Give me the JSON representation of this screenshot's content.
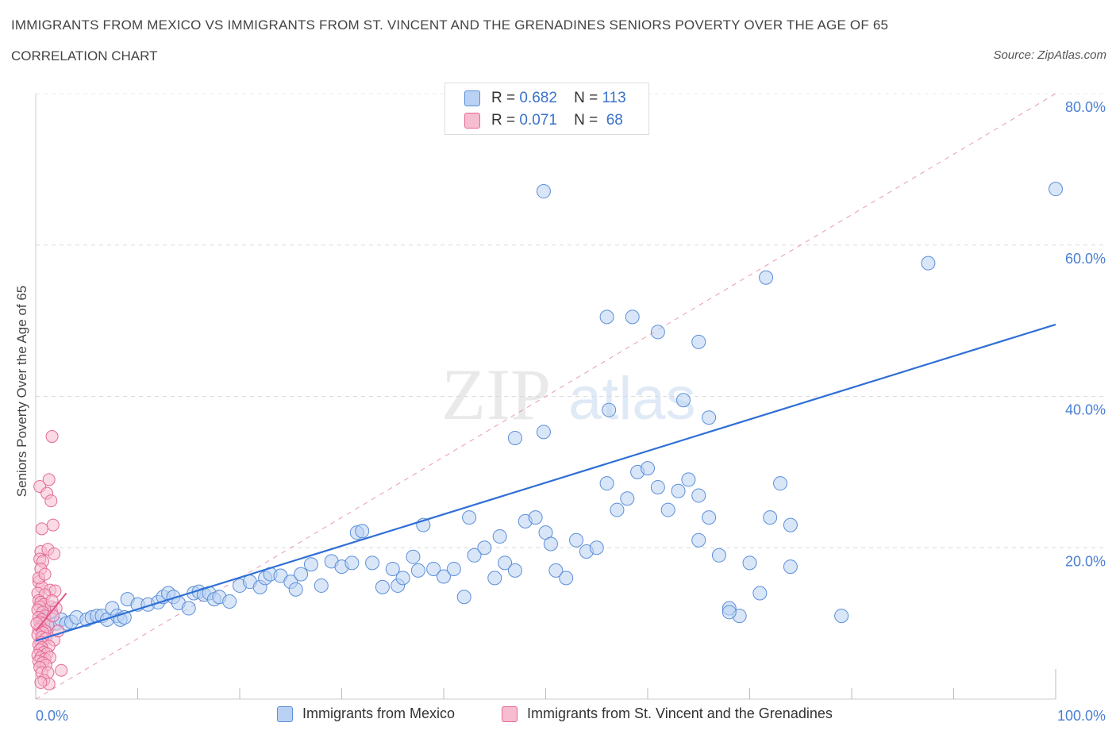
{
  "header": {
    "title": "IMMIGRANTS FROM MEXICO VS IMMIGRANTS FROM ST. VINCENT AND THE GRENADINES SENIORS POVERTY OVER THE AGE OF 65",
    "subtitle": "CORRELATION CHART",
    "source": "Source: ZipAtlas.com"
  },
  "watermark": {
    "zip": "ZIP",
    "atlas": "atlas"
  },
  "colors": {
    "blue": "#5b8fd9",
    "blue_fill": "#b9d1f2",
    "pink": "#e46a95",
    "pink_fill": "#f6bcd0",
    "ytick": "#4a7fd4"
  },
  "legend": {
    "r_label": "R =",
    "n_label": "N =",
    "series": [
      {
        "r": "0.682",
        "n": "113"
      },
      {
        "r": "0.071",
        "n": " 68"
      }
    ]
  },
  "chart_data": {
    "type": "scatter",
    "title": "IMMIGRANTS FROM MEXICO VS IMMIGRANTS FROM ST. VINCENT AND THE GRENADINES SENIORS POVERTY OVER THE AGE OF 65",
    "ylabel": "Seniors Poverty Over the Age of 65",
    "xlim": [
      0,
      100
    ],
    "ylim": [
      0,
      80
    ],
    "x_tick_labels": [
      "0.0%",
      "100.0%"
    ],
    "y_ticks": [
      20,
      40,
      60,
      80
    ],
    "y_tick_labels": [
      "20.0%",
      "40.0%",
      "60.0%",
      "80.0%"
    ],
    "grid": true,
    "legend_position": "top-center",
    "series": [
      {
        "name": "Immigrants from Mexico",
        "color": "#5b8fd9",
        "trend": {
          "x0": 0,
          "y0": 7.7,
          "x1": 100,
          "y1": 49.5
        },
        "points": [
          [
            1.5,
            11.5
          ],
          [
            0.8,
            10.5
          ],
          [
            1.2,
            9.5
          ],
          [
            2,
            10
          ],
          [
            2.5,
            10.5
          ],
          [
            3,
            10
          ],
          [
            3.5,
            10.2
          ],
          [
            4,
            10.8
          ],
          [
            5,
            10.5
          ],
          [
            5.5,
            10.8
          ],
          [
            6,
            11
          ],
          [
            6.5,
            11
          ],
          [
            7,
            10.5
          ],
          [
            7.5,
            12
          ],
          [
            8,
            11
          ],
          [
            8.3,
            10.5
          ],
          [
            8.7,
            10.8
          ],
          [
            9,
            13.2
          ],
          [
            10,
            12.5
          ],
          [
            11,
            12.5
          ],
          [
            12,
            12.8
          ],
          [
            12.5,
            13.5
          ],
          [
            13,
            14
          ],
          [
            13.5,
            13.5
          ],
          [
            14,
            12.7
          ],
          [
            15,
            12
          ],
          [
            15.5,
            14
          ],
          [
            16,
            14.2
          ],
          [
            16.5,
            13.8
          ],
          [
            17,
            14
          ],
          [
            17.5,
            13.2
          ],
          [
            18,
            13.5
          ],
          [
            19,
            12.9
          ],
          [
            20,
            15
          ],
          [
            21,
            15.5
          ],
          [
            22,
            14.8
          ],
          [
            22.5,
            16
          ],
          [
            23,
            16.5
          ],
          [
            24,
            16.3
          ],
          [
            25,
            15.5
          ],
          [
            25.5,
            14.5
          ],
          [
            26,
            16.5
          ],
          [
            27,
            17.8
          ],
          [
            28,
            15
          ],
          [
            29,
            18.2
          ],
          [
            30,
            17.5
          ],
          [
            31,
            18
          ],
          [
            31.5,
            22
          ],
          [
            32,
            22.2
          ],
          [
            33,
            18
          ],
          [
            34,
            14.8
          ],
          [
            35,
            17.2
          ],
          [
            35.5,
            15
          ],
          [
            36,
            16
          ],
          [
            37,
            18.8
          ],
          [
            37.5,
            17
          ],
          [
            38,
            23
          ],
          [
            39,
            17.2
          ],
          [
            40,
            16.2
          ],
          [
            41,
            17.2
          ],
          [
            42,
            13.5
          ],
          [
            42.5,
            24
          ],
          [
            43,
            19
          ],
          [
            44,
            20
          ],
          [
            45,
            16
          ],
          [
            45.5,
            21.5
          ],
          [
            46,
            18
          ],
          [
            47,
            17
          ],
          [
            48,
            23.5
          ],
          [
            49,
            24
          ],
          [
            50,
            22
          ],
          [
            50.5,
            20.5
          ],
          [
            51,
            17
          ],
          [
            52,
            16
          ],
          [
            53,
            21
          ],
          [
            54,
            19.5
          ],
          [
            55,
            20
          ],
          [
            56,
            28.5
          ],
          [
            57,
            25
          ],
          [
            58,
            26.5
          ],
          [
            59,
            30
          ],
          [
            60,
            30.5
          ],
          [
            61,
            28
          ],
          [
            62,
            25
          ],
          [
            63,
            27.5
          ],
          [
            64,
            29
          ],
          [
            65,
            21
          ],
          [
            66,
            24
          ],
          [
            67,
            19
          ],
          [
            68,
            12
          ],
          [
            69,
            11
          ],
          [
            70,
            18
          ],
          [
            71,
            14
          ],
          [
            72,
            24
          ],
          [
            73,
            28.5
          ],
          [
            74,
            23
          ],
          [
            58.5,
            50.5
          ],
          [
            61,
            48.5
          ],
          [
            63.5,
            39.5
          ],
          [
            65,
            47.2
          ],
          [
            66,
            37.2
          ],
          [
            56.2,
            38.2
          ],
          [
            47,
            34.5
          ],
          [
            49.8,
            35.3
          ],
          [
            56,
            50.5
          ],
          [
            71.6,
            55.7
          ],
          [
            87.5,
            57.6
          ],
          [
            49.8,
            67.1
          ],
          [
            100,
            67.4
          ],
          [
            65,
            26.9
          ],
          [
            68,
            11.5
          ],
          [
            74,
            17.5
          ],
          [
            79,
            11
          ]
        ]
      },
      {
        "name": "Immigrants from St. Vincent and the Grenadines",
        "color": "#e46a95",
        "trend": {
          "x0": 0,
          "y0": 9.0,
          "x1": 3.0,
          "y1": 14.0
        },
        "points": [
          [
            1.6,
            34.7
          ],
          [
            0.4,
            28.1
          ],
          [
            1.3,
            29
          ],
          [
            1.1,
            27.2
          ],
          [
            1.5,
            26.2
          ],
          [
            1.7,
            23
          ],
          [
            0.6,
            22.5
          ],
          [
            0.5,
            19.5
          ],
          [
            1.2,
            19.8
          ],
          [
            0.4,
            18.5
          ],
          [
            0.7,
            18.2
          ],
          [
            1.8,
            19.2
          ],
          [
            0.5,
            17.2
          ],
          [
            0.3,
            15.5
          ],
          [
            0.6,
            14.8
          ],
          [
            1.4,
            14.4
          ],
          [
            1.9,
            14.3
          ],
          [
            0.2,
            14
          ],
          [
            0.9,
            13.8
          ],
          [
            0.3,
            13
          ],
          [
            0.5,
            12.8
          ],
          [
            0.8,
            12.5
          ],
          [
            0.4,
            12.2
          ],
          [
            1.5,
            12.2
          ],
          [
            0.2,
            11.8
          ],
          [
            0.7,
            11.5
          ],
          [
            0.9,
            11
          ],
          [
            0.3,
            10.8
          ],
          [
            0.6,
            10.5
          ],
          [
            0.4,
            10.2
          ],
          [
            0.8,
            10
          ],
          [
            1.2,
            9.8
          ],
          [
            0.5,
            9.5
          ],
          [
            0.3,
            9.2
          ],
          [
            0.9,
            9
          ],
          [
            0.7,
            8.8
          ],
          [
            0.2,
            8.5
          ],
          [
            0.6,
            8.2
          ],
          [
            1.0,
            8
          ],
          [
            1.8,
            7.8
          ],
          [
            0.5,
            7.5
          ],
          [
            0.3,
            7.2
          ],
          [
            1.3,
            7
          ],
          [
            0.6,
            6.8
          ],
          [
            0.4,
            6.5
          ],
          [
            0.8,
            6.2
          ],
          [
            1.1,
            6
          ],
          [
            0.2,
            5.8
          ],
          [
            0.5,
            5.5
          ],
          [
            0.9,
            5.3
          ],
          [
            1.4,
            5.5
          ],
          [
            0.3,
            5
          ],
          [
            0.7,
            4.8
          ],
          [
            1.0,
            4.5
          ],
          [
            0.4,
            4.2
          ],
          [
            2.5,
            3.8
          ],
          [
            0.6,
            3.5
          ],
          [
            1.2,
            3.5
          ],
          [
            0.8,
            2.5
          ],
          [
            1.3,
            2
          ],
          [
            0.5,
            2.2
          ],
          [
            2.0,
            12
          ],
          [
            1.6,
            13
          ],
          [
            0.3,
            16
          ],
          [
            0.9,
            16.5
          ],
          [
            1.7,
            11
          ],
          [
            2.2,
            9
          ],
          [
            0.1,
            10
          ]
        ]
      }
    ]
  }
}
